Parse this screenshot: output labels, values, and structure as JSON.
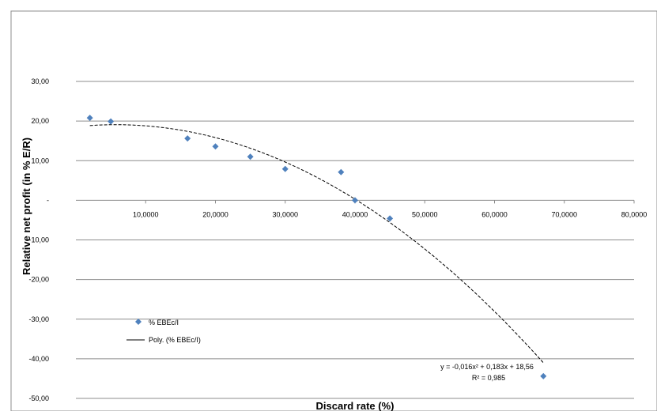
{
  "chart_data": {
    "type": "scatter",
    "xlabel": "Discard rate (%)",
    "ylabel": "Relative net profit (in % E/R)",
    "xlim": [
      0,
      80
    ],
    "ylim": [
      -50,
      30
    ],
    "x_ticks": [
      {
        "value": 10,
        "label": "10,0000"
      },
      {
        "value": 20,
        "label": "20,0000"
      },
      {
        "value": 30,
        "label": "30,0000"
      },
      {
        "value": 40,
        "label": "40,0000"
      },
      {
        "value": 50,
        "label": "50,0000"
      },
      {
        "value": 60,
        "label": "60,0000"
      },
      {
        "value": 70,
        "label": "70,0000"
      },
      {
        "value": 80,
        "label": "80,0000"
      }
    ],
    "y_ticks": [
      {
        "value": 30,
        "label": "30,00"
      },
      {
        "value": 20,
        "label": "20,00"
      },
      {
        "value": 10,
        "label": "10,00"
      },
      {
        "value": 0,
        "label": "-"
      },
      {
        "value": -10,
        "label": "-10,00"
      },
      {
        "value": -20,
        "label": "-20,00"
      },
      {
        "value": -30,
        "label": "-30,00"
      },
      {
        "value": -40,
        "label": "-40,00"
      },
      {
        "value": -50,
        "label": "-50,00"
      }
    ],
    "grid": "horizontal",
    "series": [
      {
        "name": "% EBEc/I",
        "kind": "scatter",
        "color": "#4F81BD",
        "marker": "diamond",
        "x": [
          2,
          5,
          16,
          20,
          25,
          30,
          38,
          40,
          45,
          67
        ],
        "y": [
          20.8,
          19.9,
          15.6,
          13.6,
          11.0,
          7.9,
          7.1,
          0.0,
          -4.6,
          -44.4
        ]
      },
      {
        "name": "Poly. (% EBEc/I)",
        "kind": "trendline",
        "color": "#000000",
        "style": "dashed",
        "degree": 2,
        "coefficients": [
          -0.016,
          0.183,
          18.56
        ],
        "x_range": [
          2,
          67
        ]
      }
    ],
    "legend_position": "bottom-left",
    "annotation": {
      "equation": "y = -0,016x² + 0,183x + 18,56",
      "r2": "R² = 0,985"
    }
  }
}
